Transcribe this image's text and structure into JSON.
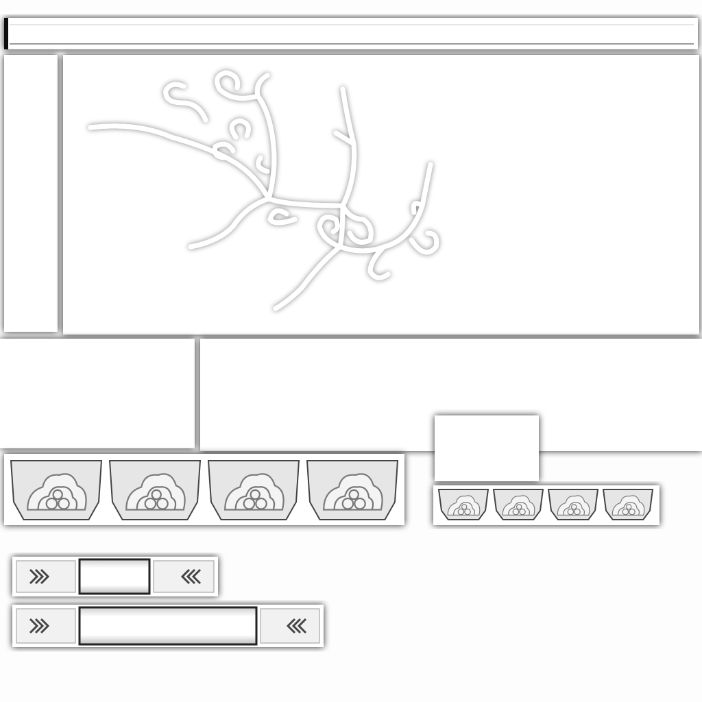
{
  "texture_sheet": {
    "background_color": "#ffffff",
    "shadow_color": "#1a1a1a",
    "panel_color": "#fbfbfb",
    "ornament_fill": "#e6e6e6",
    "ornament_stroke": "#777777"
  },
  "parts": {
    "top_rail": {
      "name": "top-rail-strip"
    },
    "left_post": {
      "name": "left-post-panel"
    },
    "vine_panel": {
      "name": "vine-panel",
      "icon": "scroll-vine-icon"
    },
    "lower_left_block": {
      "name": "lower-left-block"
    },
    "lower_right_panel": {
      "name": "lower-right-panel"
    },
    "small_square": {
      "name": "small-square-panel"
    },
    "large_cloud_frieze": {
      "name": "large-cloud-frieze",
      "icon": "cloud-motif-icon",
      "count": 4
    },
    "small_cloud_frieze": {
      "name": "small-cloud-frieze",
      "icon": "cloud-motif-icon",
      "count": 4
    },
    "short_beam": {
      "name": "short-carved-beam",
      "icon": "chevron-ornament-icon"
    },
    "long_beam": {
      "name": "long-carved-beam",
      "icon": "chevron-ornament-icon"
    }
  }
}
